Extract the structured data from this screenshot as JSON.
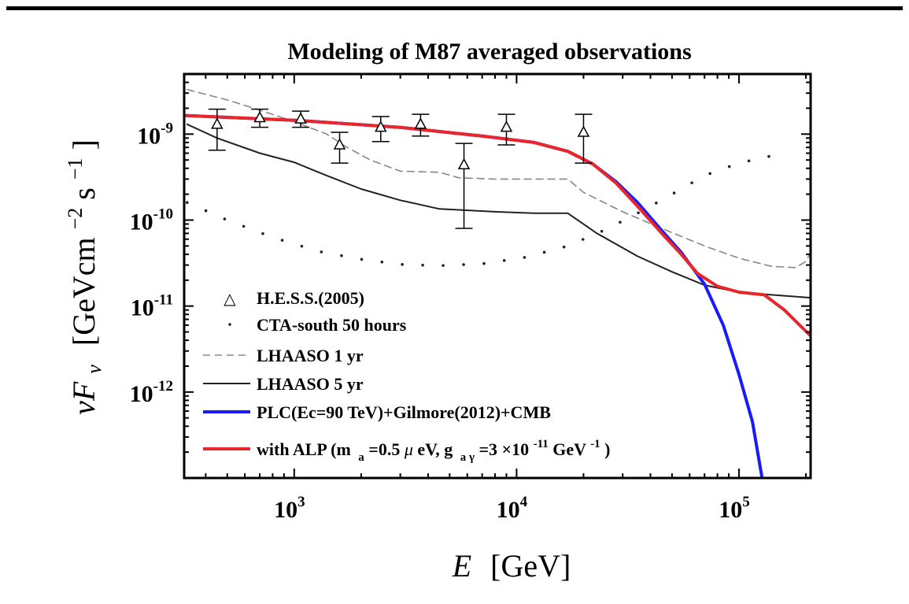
{
  "chart_data": {
    "type": "line",
    "title": "Modeling of M87 averaged observations",
    "xlabel": {
      "main": "E",
      "unit": "[GeV]"
    },
    "ylabel": {
      "main": "νF",
      "sub": "ν",
      "unit": "[GeVcm",
      "sup1": "−2",
      "mid": "s",
      "sup2": "−1",
      "close": "]"
    },
    "xscale": "log",
    "yscale": "log",
    "xlim": [
      320,
      210000
    ],
    "ylim": [
      1e-13,
      5e-09
    ],
    "xticks": [
      {
        "value": 1000,
        "base": "10",
        "exp": "3"
      },
      {
        "value": 10000,
        "base": "10",
        "exp": "4"
      },
      {
        "value": 100000,
        "base": "10",
        "exp": "5"
      }
    ],
    "yticks": [
      {
        "value": 1e-09,
        "base": "10",
        "exp": "-9"
      },
      {
        "value": 1e-10,
        "base": "10",
        "exp": "-10"
      },
      {
        "value": 1e-11,
        "base": "10",
        "exp": "-11"
      },
      {
        "value": 1e-12,
        "base": "10",
        "exp": "-12"
      }
    ],
    "grid": false,
    "legend_position": "lower-left",
    "colors": {
      "plc": "#1a1aff",
      "alp": "#e8262c",
      "lhaaso1": "#888888",
      "lhaaso5": "#222222",
      "cta": "#222222",
      "hess": "#000000"
    },
    "series": [
      {
        "name": "H.E.S.S.(2005)",
        "type": "errorbar",
        "legend": "H.E.S.S.(2005)",
        "points": [
          {
            "x": 450,
            "y": 1.3e-09,
            "ylo": 6.5e-10,
            "yhi": 1.95e-09
          },
          {
            "x": 700,
            "y": 1.55e-09,
            "ylo": 1.2e-09,
            "yhi": 1.95e-09
          },
          {
            "x": 1070,
            "y": 1.5e-09,
            "ylo": 1.2e-09,
            "yhi": 1.85e-09
          },
          {
            "x": 1600,
            "y": 7.5e-10,
            "ylo": 4.6e-10,
            "yhi": 1.05e-09
          },
          {
            "x": 2450,
            "y": 1.2e-09,
            "ylo": 8.2e-10,
            "yhi": 1.6e-09
          },
          {
            "x": 3700,
            "y": 1.3e-09,
            "ylo": 9.5e-10,
            "yhi": 1.7e-09
          },
          {
            "x": 5800,
            "y": 4.4e-10,
            "ylo": 8e-11,
            "yhi": 7.8e-10
          },
          {
            "x": 9000,
            "y": 1.2e-09,
            "ylo": 7.5e-10,
            "yhi": 1.7e-09
          },
          {
            "x": 20000,
            "y": 1.05e-09,
            "ylo": 4.6e-10,
            "yhi": 1.7e-09
          }
        ]
      },
      {
        "name": "CTA-south 50 hours",
        "type": "dotted",
        "legend": "CTA-south 50 hours",
        "points": [
          [
            330,
            1.6e-10
          ],
          [
            500,
            1e-10
          ],
          [
            800,
            6.3e-11
          ],
          [
            1300,
            4.3e-11
          ],
          [
            2000,
            3.5e-11
          ],
          [
            3000,
            3.05e-11
          ],
          [
            4500,
            2.95e-11
          ],
          [
            7000,
            3.1e-11
          ],
          [
            11000,
            3.7e-11
          ],
          [
            17000,
            5e-11
          ],
          [
            25000,
            7.7e-11
          ],
          [
            35000,
            1.2e-10
          ],
          [
            50000,
            2e-10
          ],
          [
            70000,
            3.3e-10
          ],
          [
            100000,
            4.6e-10
          ],
          [
            150000,
            5.8e-10
          ]
        ]
      },
      {
        "name": "LHAASO 1 yr",
        "type": "dashed",
        "legend": "LHAASO 1 yr",
        "points": [
          [
            330,
            3.3e-09
          ],
          [
            500,
            2.5e-09
          ],
          [
            700,
            1.9e-09
          ],
          [
            1000,
            1.4e-09
          ],
          [
            1400,
            1e-09
          ],
          [
            1700,
            7.2e-10
          ],
          [
            2200,
            5e-10
          ],
          [
            3000,
            3.7e-10
          ],
          [
            4500,
            3.6e-10
          ],
          [
            5500,
            3.1e-10
          ],
          [
            8000,
            3e-10
          ],
          [
            12000,
            3e-10
          ],
          [
            17000,
            3e-10
          ],
          [
            20000,
            2.1e-10
          ],
          [
            30000,
            1.25e-10
          ],
          [
            45000,
            8e-11
          ],
          [
            70000,
            5e-11
          ],
          [
            100000,
            3.6e-11
          ],
          [
            140000,
            2.9e-11
          ],
          [
            180000,
            2.8e-11
          ],
          [
            200000,
            3.3e-11
          ],
          [
            210000,
            4.2e-11
          ]
        ]
      },
      {
        "name": "LHAASO 5 yr",
        "type": "solid-thin",
        "legend": "LHAASO 5 yr",
        "points": [
          [
            330,
            1.3e-09
          ],
          [
            450,
            9e-10
          ],
          [
            700,
            6e-10
          ],
          [
            1000,
            4.7e-10
          ],
          [
            1400,
            3.3e-10
          ],
          [
            2000,
            2.3e-10
          ],
          [
            3000,
            1.7e-10
          ],
          [
            4500,
            1.35e-10
          ],
          [
            8000,
            1.25e-10
          ],
          [
            12000,
            1.2e-10
          ],
          [
            17000,
            1.2e-10
          ],
          [
            23000,
            7e-11
          ],
          [
            35000,
            3.8e-11
          ],
          [
            50000,
            2.5e-11
          ],
          [
            70000,
            1.75e-11
          ],
          [
            100000,
            1.45e-11
          ],
          [
            140000,
            1.35e-11
          ],
          [
            210000,
            1.25e-11
          ]
        ]
      },
      {
        "name": "PLC(Ec=90 TeV)+Gilmore(2012)+CMB",
        "type": "solid-thick",
        "legend": "PLC(Ec=90 TeV)+Gilmore(2012)+CMB",
        "points": [
          [
            320,
            1.65e-09
          ],
          [
            1000,
            1.45e-09
          ],
          [
            3000,
            1.2e-09
          ],
          [
            7000,
            9.5e-10
          ],
          [
            12000,
            8e-10
          ],
          [
            17000,
            6.3e-10
          ],
          [
            22000,
            4.5e-10
          ],
          [
            28000,
            2.8e-10
          ],
          [
            35000,
            1.6e-10
          ],
          [
            45000,
            7.5e-11
          ],
          [
            55000,
            4.2e-11
          ],
          [
            70000,
            1.8e-11
          ],
          [
            85000,
            6e-12
          ],
          [
            100000,
            1.6e-12
          ],
          [
            115000,
            4.5e-13
          ],
          [
            127000,
            1e-13
          ]
        ]
      },
      {
        "name": "with ALP",
        "type": "solid-thick",
        "legend": {
          "prefix": "with ALP (m",
          "ma_sub": "a",
          "ma_val": "=0.5",
          "mu": "μ",
          "ev": "eV, g",
          "g_sub": "a γ",
          "g_val": "=3 ×10",
          "g_exp": "-11",
          "unit": "GeV",
          "unit_exp": "-1",
          "close": ")"
        },
        "points": [
          [
            320,
            1.65e-09
          ],
          [
            1000,
            1.45e-09
          ],
          [
            3000,
            1.2e-09
          ],
          [
            7000,
            9.5e-10
          ],
          [
            12000,
            8e-10
          ],
          [
            17000,
            6.3e-10
          ],
          [
            22000,
            4.5e-10
          ],
          [
            28000,
            2.7e-10
          ],
          [
            35000,
            1.45e-10
          ],
          [
            45000,
            7e-11
          ],
          [
            55000,
            4e-11
          ],
          [
            65000,
            2.4e-11
          ],
          [
            80000,
            1.7e-11
          ],
          [
            100000,
            1.45e-11
          ],
          [
            130000,
            1.35e-11
          ],
          [
            160000,
            9e-12
          ],
          [
            190000,
            5.8e-12
          ],
          [
            210000,
            4.5e-12
          ]
        ]
      }
    ]
  }
}
